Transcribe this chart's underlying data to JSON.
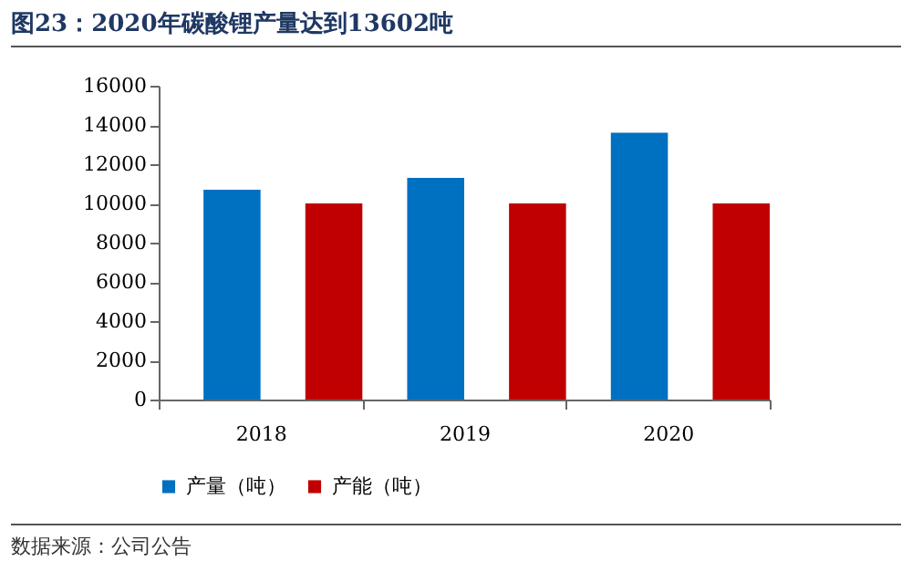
{
  "chart_data": {
    "type": "bar",
    "title": "图23：2020年碳酸锂产量达到13602吨",
    "categories": [
      "2018",
      "2019",
      "2020"
    ],
    "series": [
      {
        "name": "产量（吨）",
        "color": "#0070c0",
        "values": [
          10700,
          11300,
          13602
        ]
      },
      {
        "name": "产能（吨）",
        "color": "#c00000",
        "values": [
          10000,
          10000,
          10000
        ]
      }
    ],
    "ylim": [
      0,
      16000
    ],
    "yticks": [
      0,
      2000,
      4000,
      6000,
      8000,
      10000,
      12000,
      14000,
      16000
    ],
    "grid": false,
    "legend": "bottom",
    "annotations": [
      "数据来源：公司公告"
    ]
  }
}
